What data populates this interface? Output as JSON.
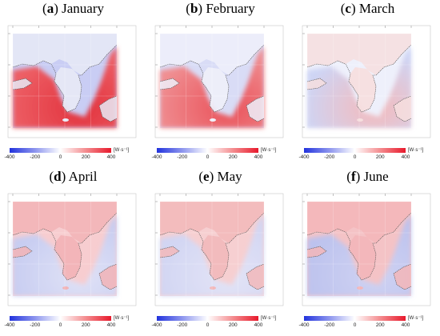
{
  "panels": [
    {
      "letter": "a",
      "month": "January",
      "palette": "jan"
    },
    {
      "letter": "b",
      "month": "February",
      "palette": "feb"
    },
    {
      "letter": "c",
      "month": "March",
      "palette": "mar"
    },
    {
      "letter": "d",
      "month": "April",
      "palette": "apr"
    },
    {
      "letter": "e",
      "month": "May",
      "palette": "may"
    },
    {
      "letter": "f",
      "month": "June",
      "palette": "jun"
    }
  ],
  "colorbar": {
    "ticks": [
      "-400",
      "-200",
      "0",
      "200",
      "400"
    ],
    "unit": "[W·s⁻¹]",
    "colors": {
      "neg": "#2233dd",
      "mid": "#ffffff",
      "pos": "#e8192c"
    }
  }
}
